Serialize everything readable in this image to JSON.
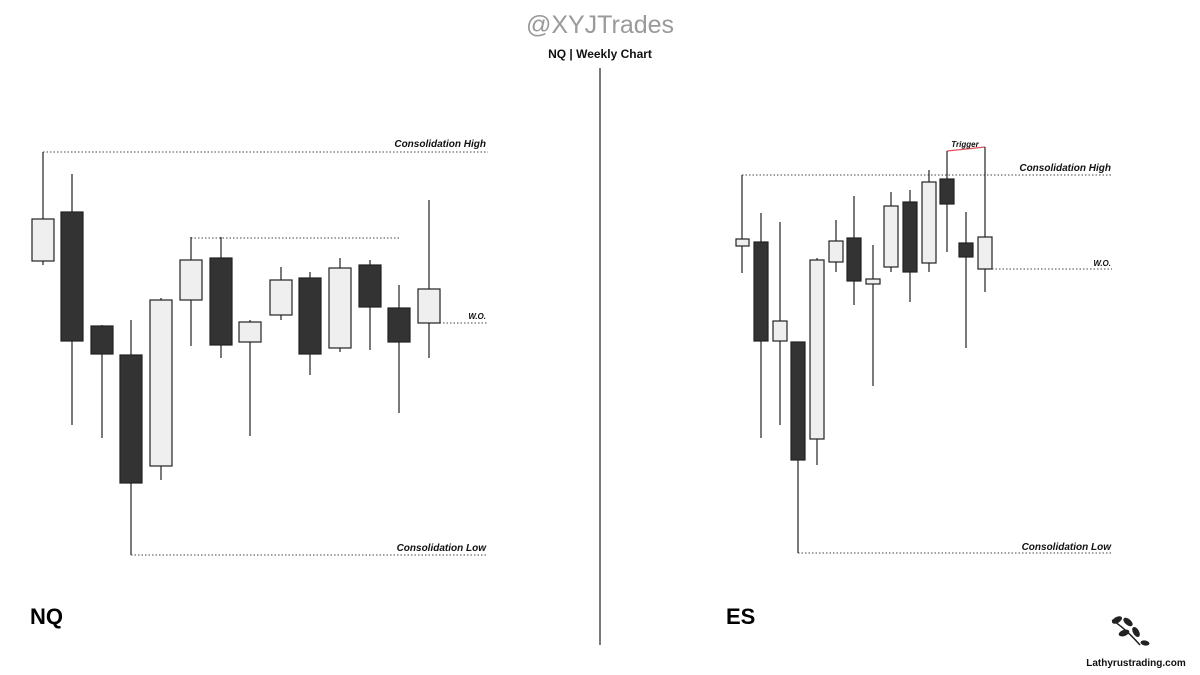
{
  "header": {
    "handle": "@XYJTrades",
    "subtitle": "NQ | Weekly Chart"
  },
  "panels": [
    {
      "label": "NQ",
      "levels": {
        "high": "Consolidation High",
        "wo": "W.O.",
        "low": "Consolidation Low"
      }
    },
    {
      "label": "ES",
      "levels": {
        "high": "Consolidation High",
        "wo": "W.O.",
        "low": "Consolidation Low"
      },
      "trigger": "Trigger"
    }
  ],
  "footer": {
    "site": "Lathyrustrading.com"
  }
}
